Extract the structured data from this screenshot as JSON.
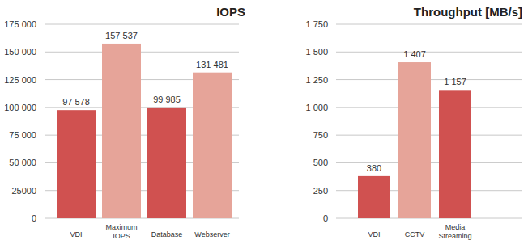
{
  "chart_data": [
    {
      "type": "bar",
      "title": "IOPS",
      "categories": [
        "VDI",
        "Maximum IOPS",
        "Database",
        "Webserver"
      ],
      "values": [
        97578,
        157537,
        99985,
        131481
      ],
      "value_labels": [
        "97 578",
        "157 537",
        "99 985",
        "131 481"
      ],
      "colors": [
        "#d05150",
        "#e6a499",
        "#d05150",
        "#e6a499"
      ],
      "ylim": [
        0,
        175000
      ],
      "yticks": [
        0,
        25000,
        {
          "value": 50000,
          "label": "50 000"
        },
        {
          "value": 75000,
          "label": "75 000"
        },
        {
          "value": 100000,
          "label": "100 000"
        },
        {
          "value": 125000,
          "label": "125 000"
        },
        {
          "value": 150000,
          "label": "150 000"
        },
        {
          "value": 175000,
          "label": "175 000"
        }
      ],
      "grid": true,
      "data_labels": true
    },
    {
      "type": "bar",
      "title": "Throughput [MB/s]",
      "categories": [
        "VDI",
        "CCTV",
        "Media Streaming"
      ],
      "values": [
        380,
        1407,
        1157
      ],
      "value_labels": [
        "380",
        "1 407",
        "1 157"
      ],
      "colors": [
        "#d05150",
        "#e6a499",
        "#d05150"
      ],
      "ylim": [
        0,
        1750
      ],
      "yticks": [
        0,
        250,
        500,
        750,
        {
          "value": 1000,
          "label": "1 000"
        },
        {
          "value": 1250,
          "label": "1 250"
        },
        {
          "value": 1500,
          "label": "1 500"
        },
        {
          "value": 1750,
          "label": "1 750"
        }
      ],
      "grid": true,
      "data_labels": true
    }
  ]
}
